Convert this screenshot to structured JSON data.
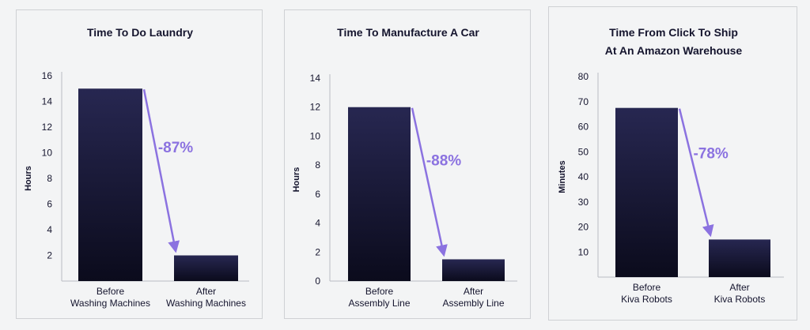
{
  "colors": {
    "bar_top": "#272751",
    "bar_bottom": "#0b0b1c",
    "arrow": "#8b72e0",
    "text": "#15152e"
  },
  "chart_data": [
    {
      "type": "bar",
      "title_lines": [
        "Time To Do Laundry"
      ],
      "ylabel": "Hours",
      "categories": [
        [
          "Before",
          "Washing Machines"
        ],
        [
          "After",
          "Washing Machines"
        ]
      ],
      "values": [
        15,
        2
      ],
      "yticks": [
        "16",
        "14",
        "12",
        "10",
        "8",
        "6",
        "4",
        "2"
      ],
      "ylim": [
        0,
        16
      ],
      "annotation": "-87%",
      "grid": false
    },
    {
      "type": "bar",
      "title_lines": [
        "Time To Manufacture A Car"
      ],
      "ylabel": "Hours",
      "categories": [
        [
          "Before",
          "Assembly Line"
        ],
        [
          "After",
          "Assembly Line"
        ]
      ],
      "values": [
        12,
        1.5
      ],
      "yticks": [
        "14",
        "12",
        "10",
        "8",
        "6",
        "4",
        "2",
        "0"
      ],
      "ylim": [
        0,
        14
      ],
      "annotation": "-88%",
      "grid": false
    },
    {
      "type": "bar",
      "title_lines": [
        "Time From Click To Ship",
        "At An Amazon Warehouse"
      ],
      "ylabel": "Minutes",
      "categories": [
        [
          "Before",
          "Kiva Robots"
        ],
        [
          "After",
          "Kiva Robots"
        ]
      ],
      "values": [
        67.5,
        15
      ],
      "yticks": [
        "80",
        "70",
        "60",
        "50",
        "40",
        "30",
        "20",
        "10"
      ],
      "ylim": [
        0,
        80
      ],
      "annotation": "-78%",
      "grid": false
    }
  ]
}
